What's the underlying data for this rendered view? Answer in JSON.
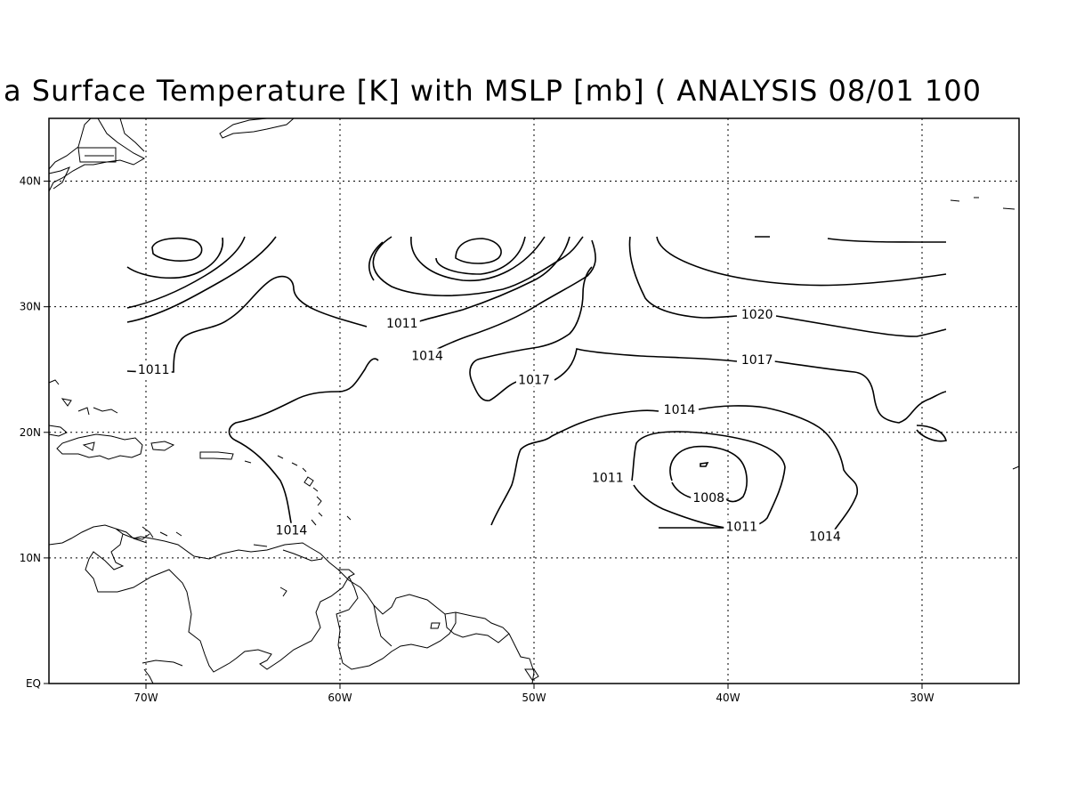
{
  "title": "a Surface Temperature [K] with MSLP [mb] ( ANALYSIS 08/01 100",
  "x_ticks": [
    {
      "lon": -70,
      "label": "70W"
    },
    {
      "lon": -60,
      "label": "60W"
    },
    {
      "lon": -50,
      "label": "50W"
    },
    {
      "lon": -40,
      "label": "40W"
    },
    {
      "lon": -30,
      "label": "30W"
    }
  ],
  "y_ticks": [
    {
      "lat": 0,
      "label": "EQ"
    },
    {
      "lat": 10,
      "label": "10N"
    },
    {
      "lat": 20,
      "label": "20N"
    },
    {
      "lat": 30,
      "label": "30N"
    },
    {
      "lat": 40,
      "label": "40N"
    }
  ],
  "extent": {
    "lon_min": -75,
    "lon_max": -25,
    "lat_min": 0,
    "lat_max": 45
  },
  "grid": true,
  "contour_labels": [
    {
      "text": "1011",
      "lon": -69.6,
      "lat": 24.8
    },
    {
      "text": "1011",
      "lon": -56.8,
      "lat": 28.5
    },
    {
      "text": "1014",
      "lon": -55.5,
      "lat": 25.9
    },
    {
      "text": "1017",
      "lon": -50.0,
      "lat": 24.0
    },
    {
      "text": "1020",
      "lon": -38.5,
      "lat": 29.2
    },
    {
      "text": "1017",
      "lon": -38.5,
      "lat": 25.6
    },
    {
      "text": "1014",
      "lon": -42.5,
      "lat": 21.6
    },
    {
      "text": "1014",
      "lon": -62.5,
      "lat": 12.0
    },
    {
      "text": "1011",
      "lon": -46.2,
      "lat": 16.2
    },
    {
      "text": "1008",
      "lon": -41.0,
      "lat": 14.6
    },
    {
      "text": "1011",
      "lon": -39.3,
      "lat": 12.3
    },
    {
      "text": "1014",
      "lon": -35.0,
      "lat": 11.5
    }
  ]
}
